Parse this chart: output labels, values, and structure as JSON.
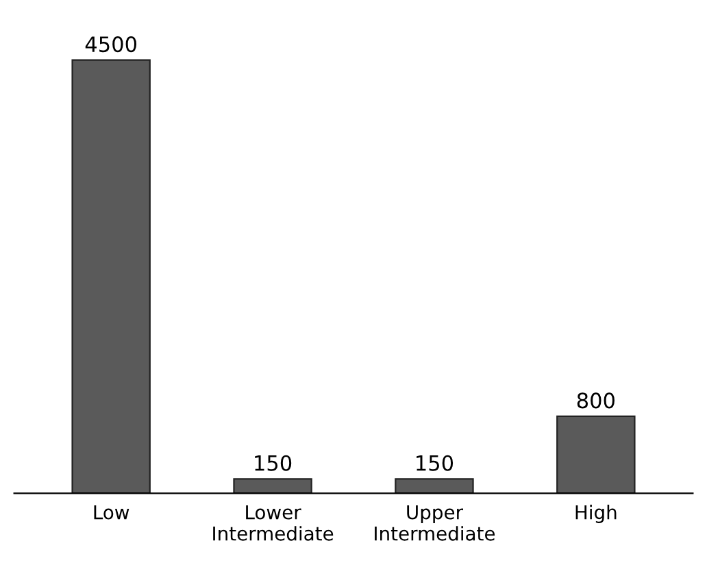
{
  "chart_data": {
    "type": "bar",
    "categories": [
      "Low",
      "Lower\nIntermediate",
      "Upper\nIntermediate",
      "High"
    ],
    "values": [
      4500,
      150,
      150,
      800
    ],
    "color": "#5a5a5a",
    "data_labels": true
  }
}
